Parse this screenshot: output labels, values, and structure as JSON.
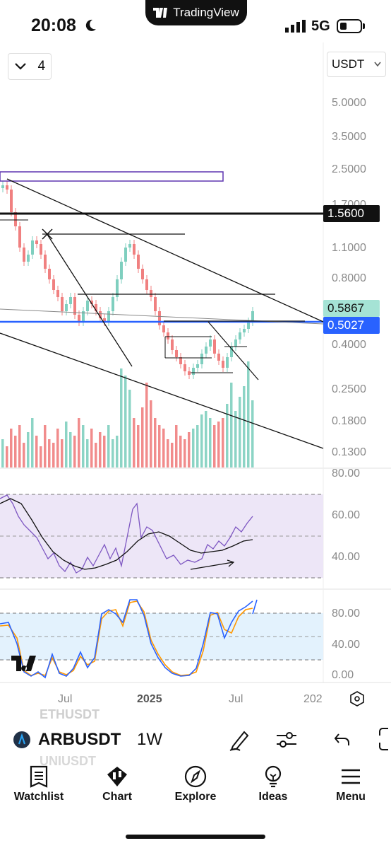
{
  "status": {
    "time": "20:08",
    "network": "5G",
    "app_pill": "TradingView"
  },
  "chart": {
    "interval_value": "4",
    "currency": "USDT",
    "price_axis": [
      "5.0000",
      "3.5000",
      "2.5000",
      "1.7000",
      "1.5600",
      "1.1000",
      "0.8000",
      "0.5867",
      "0.5027",
      "0.4000",
      "0.2500",
      "0.1800",
      "0.1300"
    ],
    "price_tags": {
      "level_black": "1.5600",
      "last_price": "0.5867",
      "blue_level": "0.5027"
    },
    "rsi_axis": [
      "80.00",
      "60.00",
      "40.00"
    ],
    "stoch_axis": [
      "80.00",
      "40.00",
      "0.00"
    ],
    "time_axis": [
      "Jul",
      "2025",
      "Jul",
      "202"
    ],
    "colors": {
      "up": "#7fcfbf",
      "down": "#f08080",
      "blue_line": "#2962ff",
      "rsi_band": "#ede6f7",
      "stoch_band": "#e3f2fd",
      "rsi_line": "#7e57c2",
      "k_line": "#2962ff",
      "d_line": "#ff9800"
    }
  },
  "symbol_bar": {
    "symbol": "ARBUSDT",
    "timeframe": "1W",
    "ghost_above": "ETHUSDT",
    "ghost_below": "UNIUSDT"
  },
  "toolbar_icons": [
    "pen-icon",
    "sliders-icon",
    "undo-icon",
    "expand-icon"
  ],
  "nav": [
    {
      "label": "Watchlist",
      "icon": "watchlist-icon"
    },
    {
      "label": "Chart",
      "icon": "chart-icon"
    },
    {
      "label": "Explore",
      "icon": "explore-icon"
    },
    {
      "label": "Ideas",
      "icon": "ideas-icon"
    },
    {
      "label": "Menu",
      "icon": "menu-icon"
    }
  ]
}
